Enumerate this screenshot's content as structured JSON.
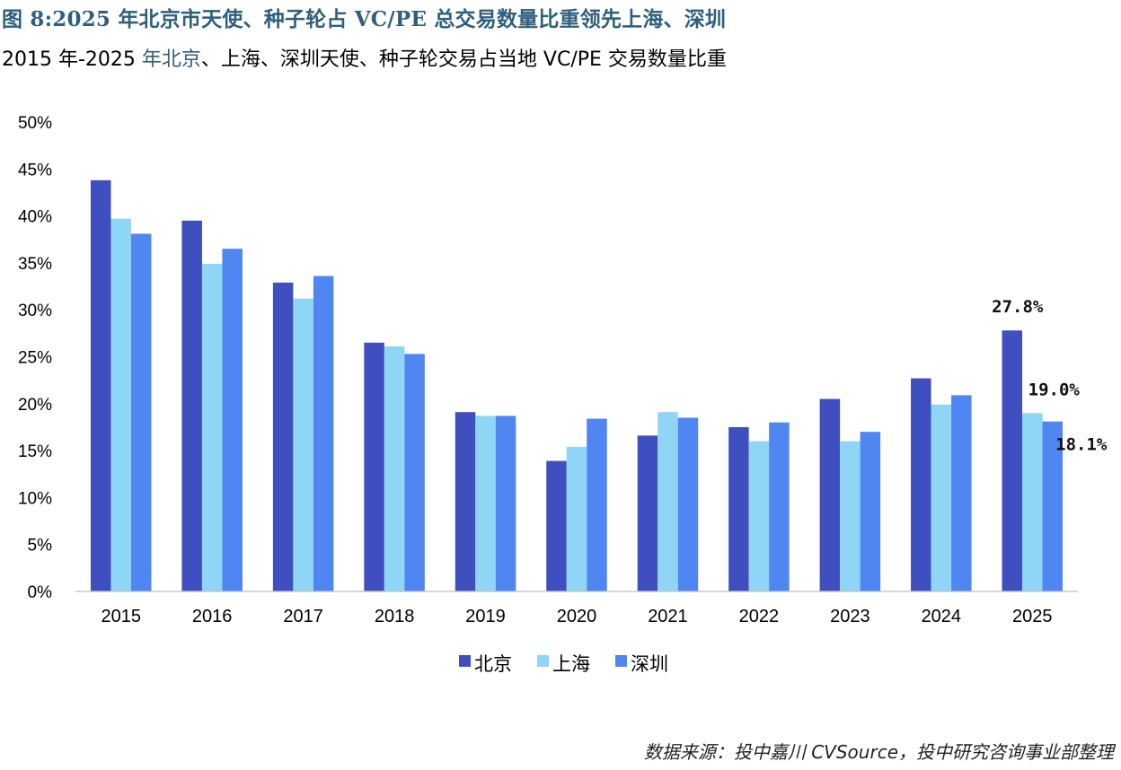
{
  "figure_title": "图 8:2025 年北京市天使、种子轮占 VC/PE 总交易数量比重领先上海、深圳",
  "subtitle_part1": "2015 年-2025 ",
  "subtitle_accent": "年北京",
  "subtitle_part2": "、上海、深圳天使、种子轮交易占当地 VC/PE 交易数量比重",
  "source_text": "数据来源：投中嘉川 CVSource，投中研究咨询事业部整理",
  "chart_data": {
    "type": "bar",
    "title": "2015 年-2025 年北京、上海、深圳天使、种子轮交易占当地 VC/PE 交易数量比重",
    "xlabel": "",
    "ylabel": "",
    "categories": [
      "2015",
      "2016",
      "2017",
      "2018",
      "2019",
      "2020",
      "2021",
      "2022",
      "2023",
      "2024",
      "2025"
    ],
    "ylim": [
      0,
      50
    ],
    "yticks": [
      0,
      5,
      10,
      15,
      20,
      25,
      30,
      35,
      40,
      45,
      50
    ],
    "ytick_labels": [
      "0%",
      "5%",
      "10%",
      "15%",
      "20%",
      "25%",
      "30%",
      "35%",
      "40%",
      "45%",
      "50%"
    ],
    "grid": false,
    "legend_position": "bottom",
    "series": [
      {
        "name": "北京",
        "color": "#3f4fbf",
        "values": [
          43.8,
          39.5,
          32.9,
          26.5,
          19.1,
          13.9,
          16.6,
          17.5,
          20.5,
          22.7,
          27.8
        ]
      },
      {
        "name": "上海",
        "color": "#8fd5f5",
        "values": [
          39.7,
          34.9,
          31.2,
          26.1,
          18.7,
          15.4,
          19.1,
          16.0,
          16.0,
          19.9,
          19.0
        ]
      },
      {
        "name": "深圳",
        "color": "#4f86f2",
        "values": [
          38.1,
          36.5,
          33.6,
          25.3,
          18.7,
          18.4,
          18.5,
          18.0,
          17.0,
          20.9,
          18.1
        ]
      }
    ],
    "annotations": [
      {
        "category": "2025",
        "series": "北京",
        "text": "27.8%"
      },
      {
        "category": "2025",
        "series": "上海",
        "text": "19.0%"
      },
      {
        "category": "2025",
        "series": "深圳",
        "text": "18.1%"
      }
    ]
  }
}
